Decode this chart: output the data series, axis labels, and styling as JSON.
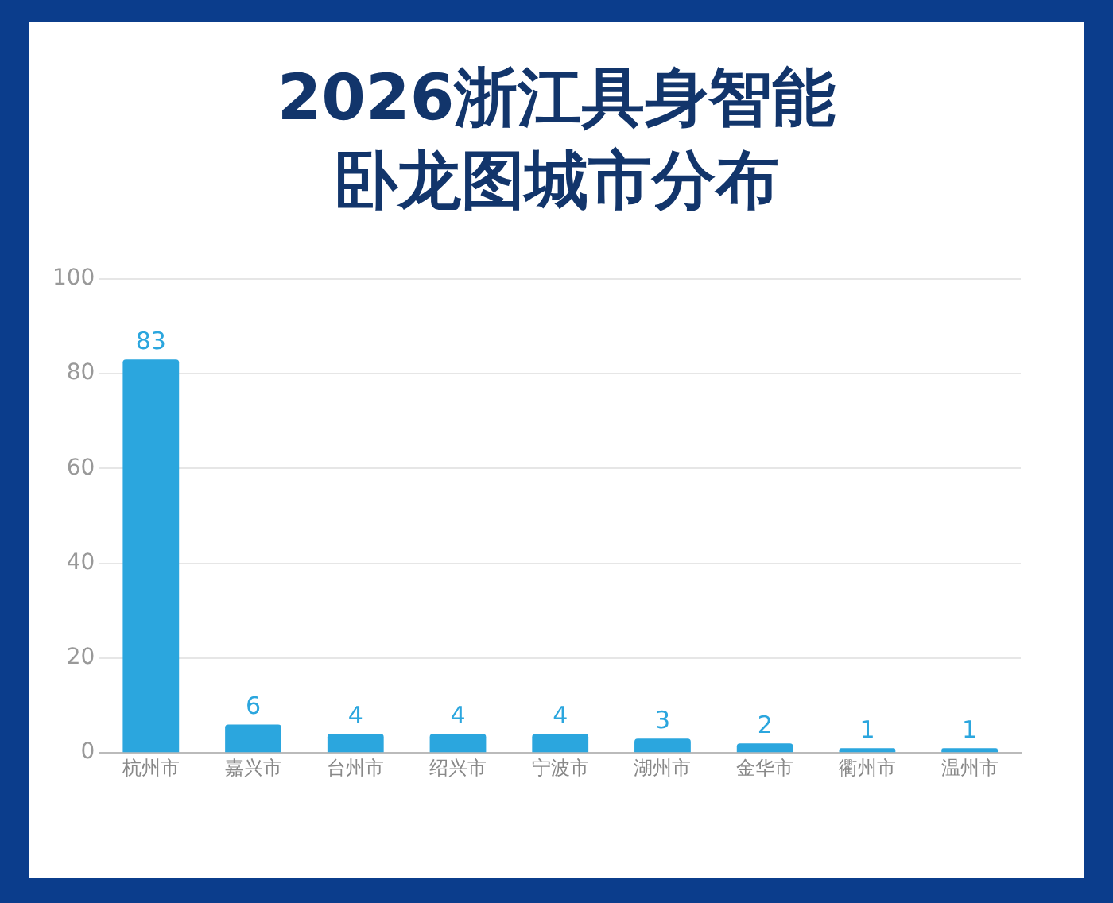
{
  "chart_data": {
    "type": "bar",
    "title": "2026浙江具身智能卧龙图城市分布",
    "categories": [
      "杭州市",
      "嘉兴市",
      "台州市",
      "绍兴市",
      "宁波市",
      "湖州市",
      "金华市",
      "衢州市",
      "温州市"
    ],
    "values": [
      83,
      6,
      4,
      4,
      4,
      3,
      2,
      1,
      1
    ],
    "color": "#2ba6de",
    "ylim": [
      0,
      100
    ],
    "yticks": [
      0,
      20,
      40,
      60,
      80,
      100
    ],
    "grid": "y",
    "data_labels": true,
    "legend": false
  }
}
